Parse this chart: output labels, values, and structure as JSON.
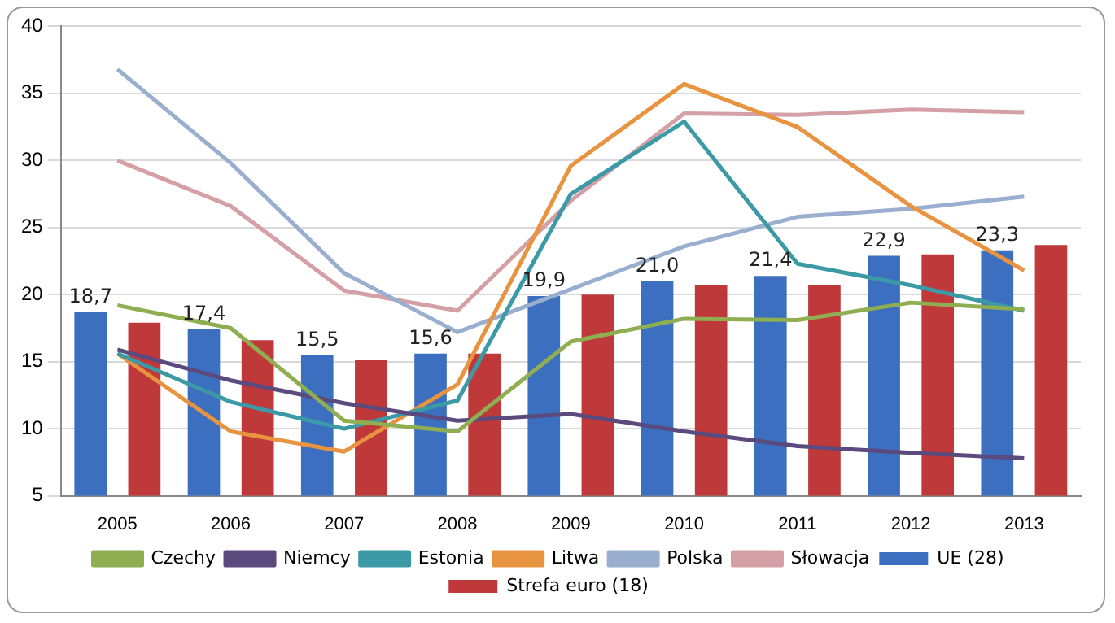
{
  "chart_data": {
    "type": "bar",
    "categories": [
      "2005",
      "2006",
      "2007",
      "2008",
      "2009",
      "2010",
      "2011",
      "2012",
      "2013"
    ],
    "ylim": [
      5,
      40
    ],
    "yticks": [
      5,
      10,
      15,
      20,
      25,
      30,
      35,
      40
    ],
    "grid": "y",
    "legend": "bottom",
    "series": [
      {
        "name": "UE (28)",
        "color": "#3c6fbf",
        "values": [
          18.7,
          17.4,
          15.5,
          15.6,
          19.9,
          21.0,
          21.4,
          22.9,
          23.3
        ],
        "value_labels": [
          "18,7",
          "17,4",
          "15,5",
          "15,6",
          "19,9",
          "21,0",
          "21,4",
          "22,9",
          "23,3"
        ]
      },
      {
        "name": "Strefa euro (18)",
        "color": "#c0393a",
        "values": [
          17.9,
          16.6,
          15.1,
          15.6,
          20.0,
          20.7,
          20.7,
          23.0,
          23.7
        ]
      },
      {
        "name": "Czechy",
        "type": "line",
        "color": "#8fae52",
        "values": [
          19.2,
          17.5,
          10.6,
          9.8,
          16.5,
          18.2,
          18.1,
          19.4,
          18.9
        ]
      },
      {
        "name": "Niemcy",
        "type": "line",
        "color": "#5b4a7e",
        "values": [
          15.9,
          13.6,
          11.9,
          10.6,
          11.1,
          9.8,
          8.7,
          8.2,
          7.8
        ]
      },
      {
        "name": "Estonia",
        "type": "line",
        "color": "#3b9aa6",
        "values": [
          15.6,
          12.0,
          10.0,
          12.1,
          27.5,
          32.9,
          22.3,
          20.7,
          18.8
        ]
      },
      {
        "name": "Litwa",
        "type": "line",
        "color": "#e8933f",
        "values": [
          15.6,
          9.8,
          8.3,
          13.3,
          29.6,
          35.7,
          32.5,
          26.6,
          21.8
        ]
      },
      {
        "name": "Polska",
        "type": "line",
        "color": "#9aaed0",
        "values": [
          36.8,
          29.8,
          21.6,
          17.2,
          20.4,
          23.6,
          25.8,
          26.4,
          27.3
        ]
      },
      {
        "name": "Słowacja",
        "type": "line",
        "color": "#d4a0a6",
        "values": [
          30.0,
          26.6,
          20.3,
          18.8,
          27.0,
          33.5,
          33.4,
          33.8,
          33.6
        ]
      }
    ]
  }
}
